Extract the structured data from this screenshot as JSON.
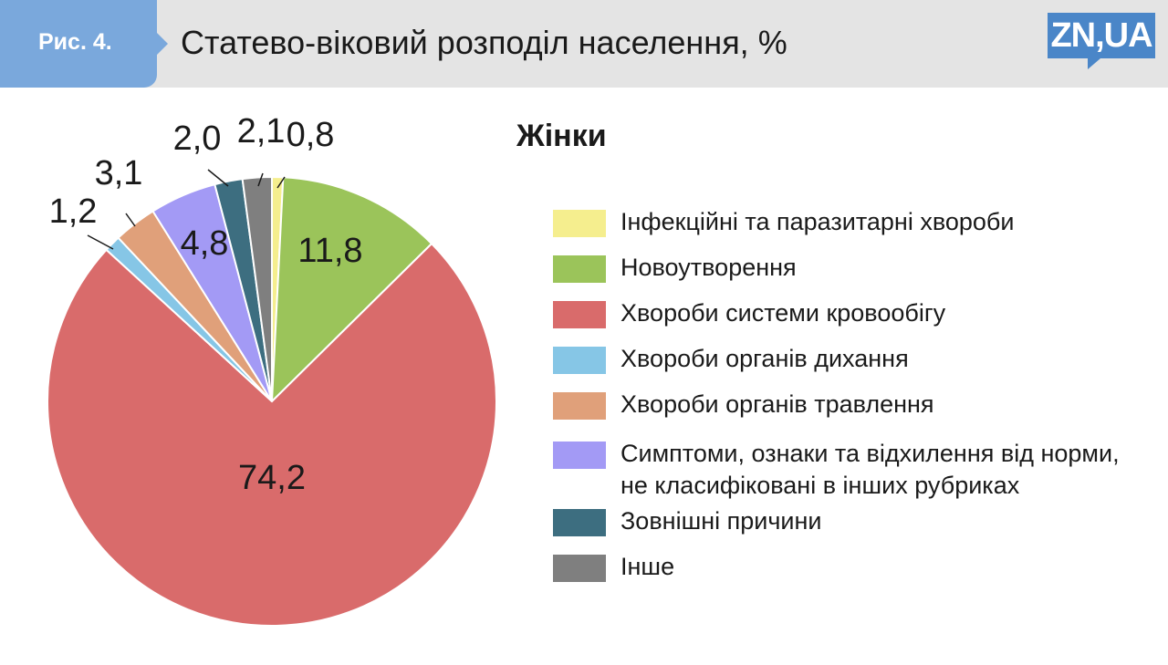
{
  "header": {
    "figure_label": "Рис. 4.",
    "title": "Статево-віковий розподіл населення, %",
    "logo_text": "ZN,UA"
  },
  "chart_data": {
    "type": "pie",
    "title": "Жінки",
    "slices": [
      {
        "label": "Інфекційні та паразитарні хвороби",
        "value": 0.8,
        "value_label": "0,8",
        "color": "#f5ee8e"
      },
      {
        "label": "Новоутворення",
        "value": 11.8,
        "value_label": "11,8",
        "color": "#9bc45a"
      },
      {
        "label": "Хвороби системи кровообігу",
        "value": 74.2,
        "value_label": "74,2",
        "color": "#d96b6b"
      },
      {
        "label": "Хвороби органів дихання",
        "value": 1.2,
        "value_label": "1,2",
        "color": "#86c6e6"
      },
      {
        "label": "Хвороби органів травлення",
        "value": 3.1,
        "value_label": "3,1",
        "color": "#e0a07a"
      },
      {
        "label": "Симптоми, ознаки та відхилення від норми, не класифіковані в інших рубриках",
        "value": 4.8,
        "value_label": "4,8",
        "color": "#a39af5"
      },
      {
        "label": "Зовнішні причини",
        "value": 2.0,
        "value_label": "2,0",
        "color": "#3d6e80"
      },
      {
        "label": "Інше",
        "value": 2.1,
        "value_label": "2,1",
        "color": "#7f7f7f"
      }
    ],
    "legend_position": "right",
    "start_angle_deg": 0,
    "direction": "clockwise"
  }
}
